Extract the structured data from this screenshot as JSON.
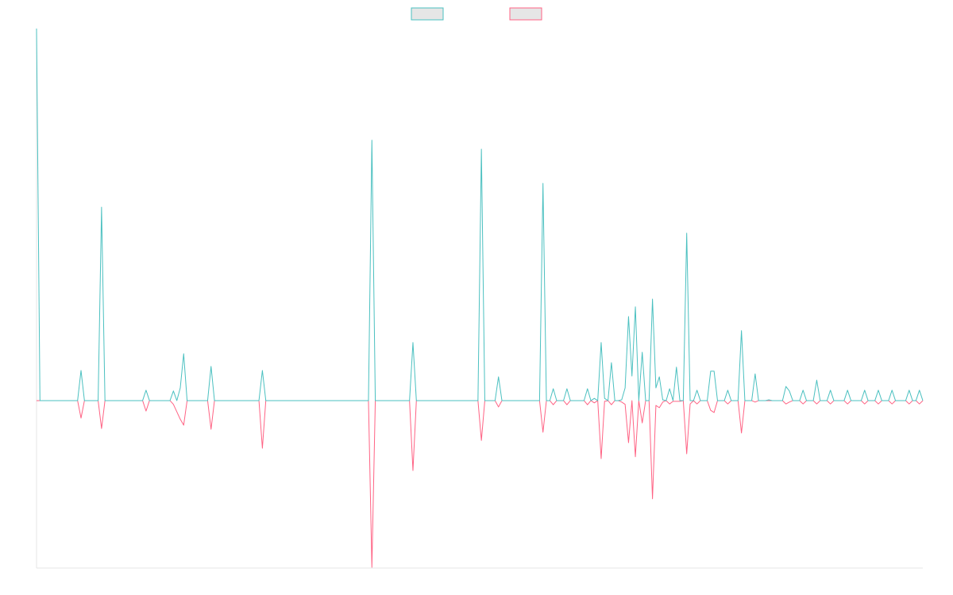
{
  "chart_data": {
    "type": "line",
    "x": [
      0,
      1,
      12,
      13,
      14,
      18,
      19,
      20,
      31,
      32,
      33,
      39,
      40,
      41,
      42,
      43,
      44,
      50,
      51,
      52,
      65,
      66,
      67,
      97,
      98,
      99,
      109,
      110,
      111,
      129,
      130,
      131,
      134,
      135,
      136,
      147,
      148,
      149,
      150,
      151,
      152,
      154,
      155,
      156,
      160,
      161,
      162,
      163,
      164,
      165,
      166,
      167,
      168,
      169,
      170,
      171,
      172,
      173,
      174,
      175,
      176,
      177,
      178,
      179,
      180,
      181,
      182,
      183,
      184,
      185,
      186,
      187,
      188,
      189,
      190,
      191,
      192,
      193,
      194,
      196,
      197,
      198,
      199,
      201,
      202,
      203,
      205,
      206,
      207,
      209,
      210,
      211,
      213,
      214,
      215,
      218,
      219,
      220,
      221,
      223,
      224,
      225,
      227,
      228,
      229,
      231,
      232,
      233,
      236,
      237,
      238,
      241,
      242,
      243,
      245,
      246,
      247,
      249,
      250,
      251,
      254,
      255,
      256,
      257,
      258,
      259
    ],
    "series": [
      {
        "color": "#4bc0c0",
        "values": [
          100,
          0,
          0,
          8.1,
          0,
          0,
          52,
          0,
          0,
          2.8,
          0,
          0,
          2.6,
          0,
          3.4,
          12.6,
          0,
          0,
          9.2,
          0,
          0,
          8.1,
          0,
          0,
          70,
          0,
          0,
          15.6,
          0,
          0,
          67.6,
          0,
          0,
          6.4,
          0,
          0,
          58.4,
          0,
          0,
          3.2,
          0,
          0,
          3.2,
          0,
          0,
          3.2,
          0,
          0.6,
          0,
          15.6,
          0.6,
          0,
          10.2,
          0,
          0,
          0.2,
          3.4,
          22.6,
          6.6,
          25.2,
          0,
          13,
          0,
          0,
          27.3,
          3.4,
          6.4,
          0.2,
          0,
          3.2,
          0,
          9,
          0,
          0,
          45,
          0,
          0,
          2.8,
          0,
          0,
          7.9,
          7.9,
          0,
          0,
          2.8,
          0,
          0,
          18.8,
          0,
          0,
          7.2,
          0,
          0,
          0.2,
          0,
          0,
          3.8,
          2.6,
          0,
          0,
          2.8,
          0,
          0,
          5.5,
          0,
          0,
          2.8,
          0,
          0,
          2.8,
          0,
          0,
          2.8,
          0,
          0,
          2.8,
          0,
          0,
          2.8,
          0,
          0,
          2.8,
          0,
          0,
          2.8,
          0
        ]
      },
      {
        "color": "#ff6384",
        "values": [
          0,
          0,
          0,
          -4.7,
          0,
          0,
          -7.5,
          0,
          0,
          -2.8,
          0,
          0,
          -1,
          -3,
          -5,
          -6.6,
          0,
          0,
          -7.7,
          0,
          0,
          -12.8,
          0,
          0,
          -44.8,
          0,
          0,
          -18.8,
          0,
          0,
          -10.7,
          0,
          0,
          -1.7,
          0,
          0,
          -8.5,
          0,
          0,
          -1.1,
          0,
          0,
          -1.1,
          0,
          0,
          -1.1,
          0,
          -0.6,
          0,
          -15.6,
          -0.2,
          0,
          -1.1,
          0,
          0,
          -0.4,
          -1,
          -11.3,
          0,
          -15.1,
          0,
          -6,
          0,
          0,
          -26.4,
          -1.3,
          -1.9,
          -0.4,
          0,
          -0.9,
          -0.2,
          -0.2,
          -0.2,
          0,
          -14.3,
          -0.9,
          0,
          -0.9,
          0,
          0,
          -2.6,
          -3.2,
          0,
          0,
          -0.9,
          0,
          0,
          -8.7,
          0,
          0,
          -0.4,
          0,
          0,
          0,
          0,
          0,
          -0.9,
          -0.4,
          0,
          0,
          -0.9,
          0,
          0,
          -0.9,
          0,
          0,
          -0.9,
          0,
          0,
          -0.9,
          0,
          0,
          -0.9,
          0,
          0,
          -0.9,
          0,
          0,
          -0.9,
          0,
          0,
          -0.9,
          0,
          0,
          -0.9,
          0
        ]
      }
    ],
    "xlim": [
      0,
      259
    ],
    "ylim": [
      -45,
      100
    ],
    "legend": "top"
  }
}
